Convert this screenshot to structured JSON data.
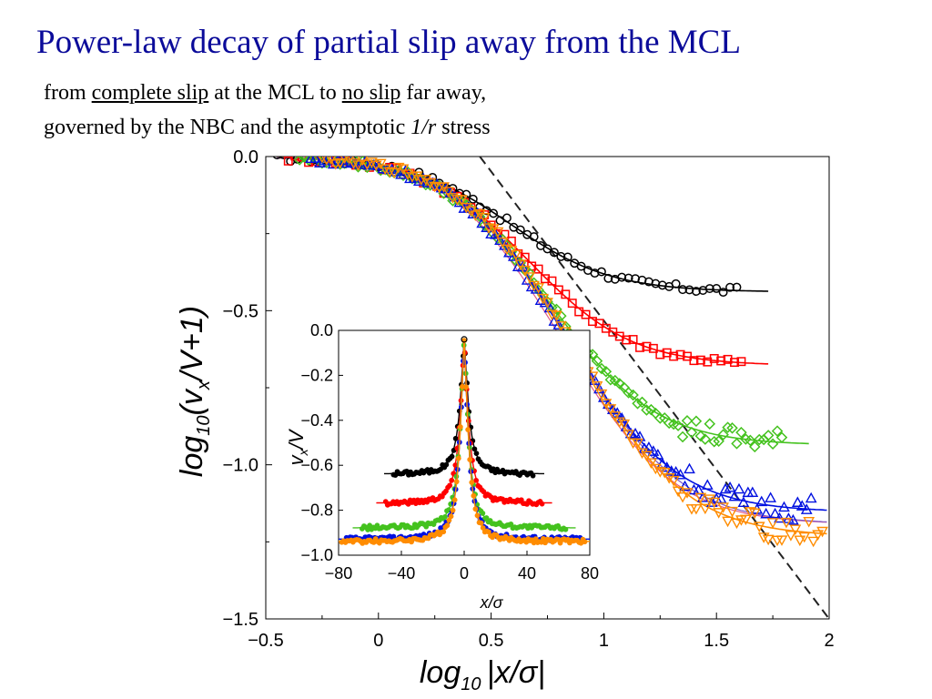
{
  "slide": {
    "title": "Power-law decay of partial slip away from the MCL",
    "line1": {
      "prefix": "from ",
      "u1": "complete slip",
      "mid": " at the MCL to ",
      "u2": "no slip",
      "suffix": " far away,"
    },
    "line2": {
      "prefix": "governed by the NBC and the asymptotic ",
      "em": "1/r",
      "suffix": " stress"
    }
  },
  "colors": {
    "title": "#0b0b9a",
    "black": "#000000",
    "red": "#ff0000",
    "green": "#44c21e",
    "blue": "#0010e0",
    "orange": "#ff8c00",
    "pink": "#e05a88",
    "purple": "#7b55c8",
    "dashed": "#222222"
  },
  "chart_data": [
    {
      "type": "scatter",
      "xlim": [
        -0.5,
        2.0
      ],
      "ylim": [
        -1.5,
        0.0
      ],
      "xticks": [
        "−0.5",
        "0",
        "0.5",
        "1",
        "1.5",
        "2"
      ],
      "yticks": [
        "0.0",
        "−0.5",
        "−1.0",
        "−1.5"
      ],
      "xlabel": {
        "pre": "log",
        "sub": "10",
        "post": "|x/σ|"
      },
      "ylabel": {
        "pre": "log",
        "sub1": "10",
        "mid": "(v",
        "sub2": "x",
        "post": "/V+1)"
      },
      "reference_line": {
        "style": "dashed",
        "slope": -1,
        "points": [
          [
            0.45,
            0.0
          ],
          [
            2.0,
            -1.5
          ]
        ]
      },
      "series": [
        {
          "marker": "circle",
          "color": "black",
          "plateau": -0.44,
          "xmax": 1.62
        },
        {
          "marker": "square",
          "color": "red",
          "plateau": -0.68,
          "xmax": 1.62
        },
        {
          "marker": "diamond",
          "color": "green",
          "plateau": -0.94,
          "xmax": 1.8
        },
        {
          "marker": "triangle-up",
          "color": "blue",
          "plateau": -1.16,
          "xmax": 1.94
        },
        {
          "marker": "triangle-down",
          "color": "orange",
          "plateau": -1.24,
          "xmax": 1.98
        }
      ]
    },
    {
      "type": "scatter",
      "xlim": [
        -80,
        80
      ],
      "ylim": [
        -1.0,
        0.0
      ],
      "xticks": [
        "−80",
        "−40",
        "0",
        "40",
        "80"
      ],
      "yticks": [
        "0.0",
        "−0.2",
        "−0.4",
        "−0.6",
        "−0.8",
        "−1.0"
      ],
      "xlabel": "x/σ",
      "ylabel": {
        "pre": "v",
        "sub": "x",
        "post": "/V"
      },
      "series": [
        {
          "color": "black",
          "plateau": -0.64,
          "xrange": [
            -45,
            45
          ]
        },
        {
          "color": "red",
          "plateau": -0.77,
          "xrange": [
            -50,
            50
          ]
        },
        {
          "color": "green",
          "plateau": -0.88,
          "xrange": [
            -65,
            65
          ]
        },
        {
          "color": "blue",
          "plateau": -0.93,
          "xrange": [
            -75,
            75
          ]
        },
        {
          "color": "orange",
          "plateau": -0.94,
          "xrange": [
            -78,
            78
          ]
        }
      ]
    }
  ]
}
